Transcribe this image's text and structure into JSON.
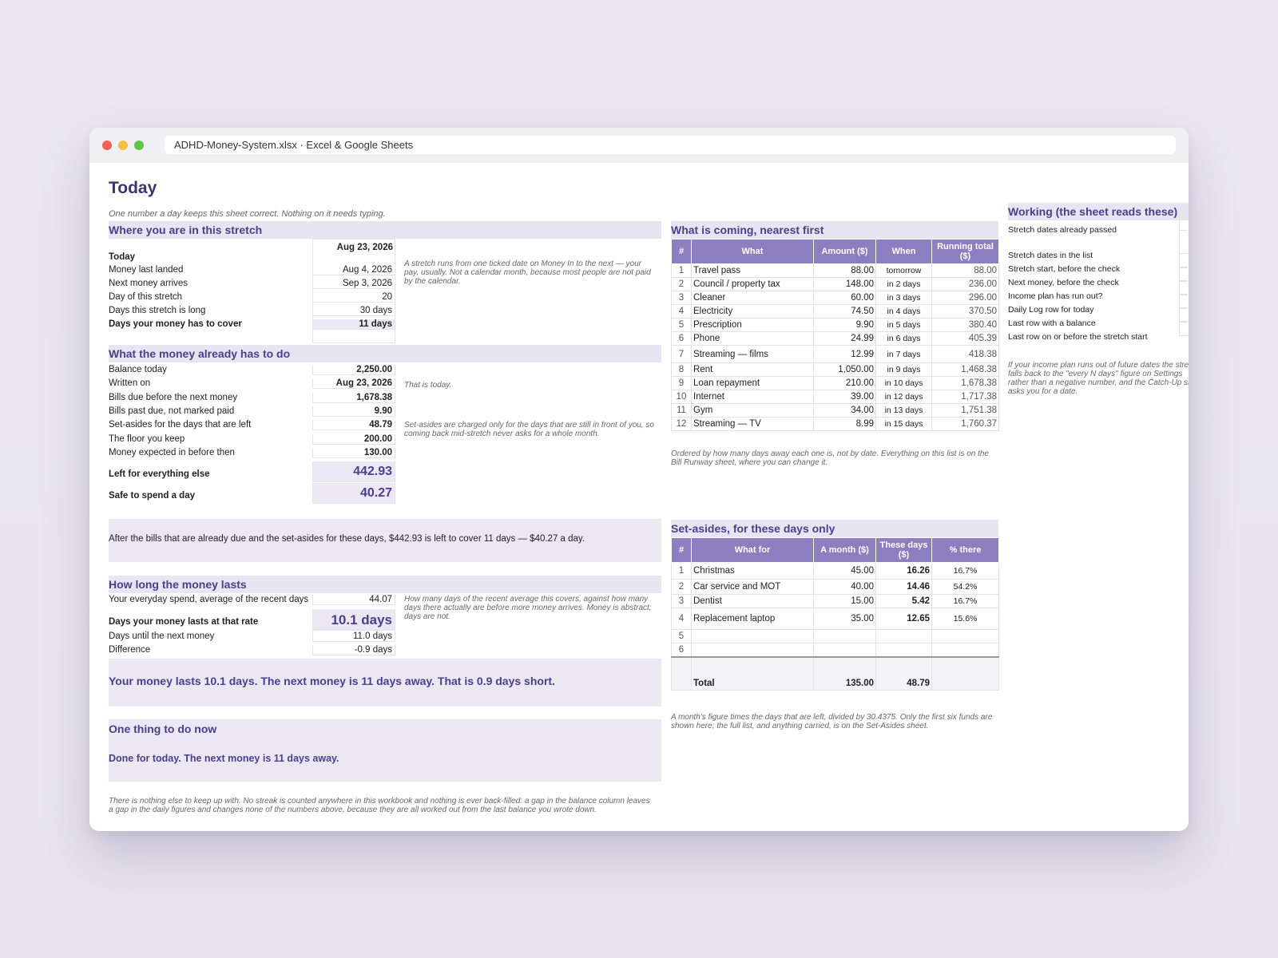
{
  "window": {
    "title": "ADHD-Money-System.xlsx · Excel & Google Sheets"
  },
  "page": {
    "title": "Today",
    "subtitle": "One number a day keeps this sheet correct. Nothing on it needs typing."
  },
  "stretch": {
    "heading": "Where you are in this stretch",
    "rows": [
      {
        "label": "Today",
        "value": "Aug 23, 2026"
      },
      {
        "label": "Money last landed",
        "value": "Aug 4, 2026"
      },
      {
        "label": "Next money arrives",
        "value": "Sep 3, 2026"
      },
      {
        "label": "Day of this stretch",
        "value": "20"
      },
      {
        "label": "Days this stretch is long",
        "value": "30 days"
      },
      {
        "label": "Days your money has to cover",
        "value": "11 days"
      }
    ],
    "note": "A stretch runs from one ticked date on Money In to the next — your pay, usually. Not a calendar month, because most people are not paid by the calendar."
  },
  "money": {
    "heading": "What the money already has to do",
    "rows": [
      {
        "label": "Balance today",
        "value": "2,250.00"
      },
      {
        "label": "Written on",
        "value": "Aug 23, 2026"
      },
      {
        "label": "Bills due before the next money",
        "value": "1,678.38"
      },
      {
        "label": "Bills past due, not marked paid",
        "value": "9.90"
      },
      {
        "label": "Set-asides for the days that are left",
        "value": "48.79"
      },
      {
        "label": "The floor you keep",
        "value": "200.00"
      },
      {
        "label": "Money expected in before then",
        "value": "130.00"
      },
      {
        "label": "Left for everything else",
        "value": "442.93"
      },
      {
        "label": "Safe to spend a day",
        "value": "40.27"
      }
    ],
    "note_today": "That is today.",
    "note_setasides": "Set-asides are charged only for the days that are still in front of you, so coming back mid-stretch never asks for a whole month.",
    "summary": "After the bills that are already due and the set-asides for these days, $442.93 is left to cover 11 days — $40.27 a day."
  },
  "lasts": {
    "heading": "How long the money lasts",
    "rows": [
      {
        "label": "Your everyday spend, average of the recent days",
        "value": "44.07"
      },
      {
        "label": "Days your money lasts at that rate",
        "value": "10.1 days"
      },
      {
        "label": "Days until the next money",
        "value": "11.0 days"
      },
      {
        "label": "Difference",
        "value": "-0.9 days"
      }
    ],
    "note": "How many days of the recent average this covers, against how many days there actually are before more money arrives. Money is abstract; days are not.",
    "summary": "Your money lasts 10.1 days. The next money is 11 days away. That is 0.9 days short."
  },
  "action": {
    "heading": "One thing to do now",
    "text": "Done for today. The next money is 11 days away."
  },
  "footer_note": "There is nothing else to keep up with. No streak is counted anywhere in this workbook and nothing is ever back-filled: a gap in the balance column leaves a gap in the daily figures and changes none of the numbers above, because they are all worked out from the last balance you wrote down.",
  "coming": {
    "heading": "What is coming, nearest first",
    "columns": [
      "#",
      "What",
      "Amount ($)",
      "When",
      "Running total ($)"
    ],
    "rows": [
      {
        "n": "1",
        "what": "Travel pass",
        "amount": "88.00",
        "when": "tomorrow",
        "running": "88.00"
      },
      {
        "n": "2",
        "what": "Council / property tax",
        "amount": "148.00",
        "when": "in 2 days",
        "running": "236.00"
      },
      {
        "n": "3",
        "what": "Cleaner",
        "amount": "60.00",
        "when": "in 3 days",
        "running": "296.00"
      },
      {
        "n": "4",
        "what": "Electricity",
        "amount": "74.50",
        "when": "in 4 days",
        "running": "370.50"
      },
      {
        "n": "5",
        "what": "Prescription",
        "amount": "9.90",
        "when": "in 5 days",
        "running": "380.40"
      },
      {
        "n": "6",
        "what": "Phone",
        "amount": "24.99",
        "when": "in 6 days",
        "running": "405.39"
      },
      {
        "n": "7",
        "what": "Streaming — films",
        "amount": "12.99",
        "when": "in 7 days",
        "running": "418.38"
      },
      {
        "n": "8",
        "what": "Rent",
        "amount": "1,050.00",
        "when": "in 9 days",
        "running": "1,468.38"
      },
      {
        "n": "9",
        "what": "Loan repayment",
        "amount": "210.00",
        "when": "in 10 days",
        "running": "1,678.38"
      },
      {
        "n": "10",
        "what": "Internet",
        "amount": "39.00",
        "when": "in 12 days",
        "running": "1,717.38"
      },
      {
        "n": "11",
        "what": "Gym",
        "amount": "34.00",
        "when": "in 13 days",
        "running": "1,751.38"
      },
      {
        "n": "12",
        "what": "Streaming — TV",
        "amount": "8.99",
        "when": "in 15 days",
        "running": "1,760.37"
      }
    ],
    "note": "Ordered by how many days away each one is, not by date. Everything on this list is on the Bill Runway sheet, where you can change it."
  },
  "setasides": {
    "heading": "Set-asides, for these days only",
    "columns": [
      "#",
      "What for",
      "A month ($)",
      "These days ($)",
      "% there"
    ],
    "rows": [
      {
        "n": "1",
        "what": "Christmas",
        "month": "45.00",
        "days": "16.26",
        "pct": "16.7%"
      },
      {
        "n": "2",
        "what": "Car service and MOT",
        "month": "40.00",
        "days": "14.46",
        "pct": "54.2%"
      },
      {
        "n": "3",
        "what": "Dentist",
        "month": "15.00",
        "days": "5.42",
        "pct": "16.7%"
      },
      {
        "n": "4",
        "what": "Replacement laptop",
        "month": "35.00",
        "days": "12.65",
        "pct": "15.6%"
      },
      {
        "n": "5",
        "what": "",
        "month": "",
        "days": "",
        "pct": ""
      },
      {
        "n": "6",
        "what": "",
        "month": "",
        "days": "",
        "pct": ""
      }
    ],
    "total": {
      "label": "Total",
      "month": "135.00",
      "days": "48.79"
    },
    "note": "A month's figure times the days that are left, divided by 30.4375. Only the first six funds are shown here; the full list, and anything carried, is on the Set-Asides sheet."
  },
  "working": {
    "heading": "Working (the sheet reads these)",
    "rows": [
      "Stretch dates already passed",
      "Stretch dates in the list",
      "Stretch start, before the check",
      "Next money, before the check",
      "Income plan has run out?",
      "Daily Log row for today",
      "Last row with a balance",
      "Last row on or before the stretch start"
    ],
    "note": "If your income plan runs out of future dates the stretch falls back to the \"every N days\" figure on Settings rather than a negative number, and the Catch-Up sheet asks you for a date."
  },
  "colors": {
    "accent": "#4a3f8a",
    "header_fill": "#8b7fc0",
    "band_fill": "#e8e5f2"
  }
}
